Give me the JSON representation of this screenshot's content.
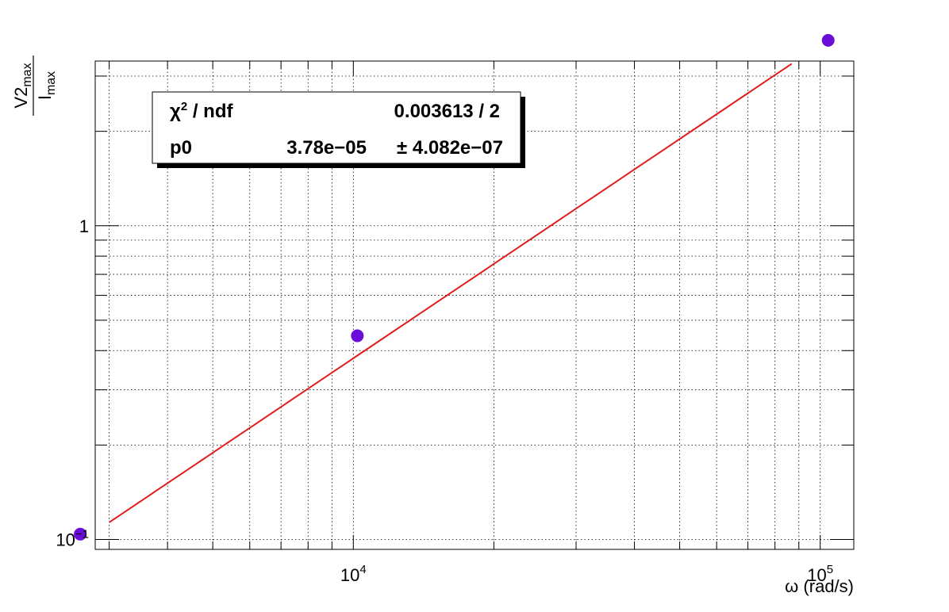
{
  "chart_data": {
    "type": "scatter",
    "title": "",
    "xlabel": "ω (rad/s)",
    "ylabel_num": "V2",
    "ylabel_num_sub": "max",
    "ylabel_den": "I",
    "ylabel_den_sub": "max",
    "x_scale": "log",
    "y_scale": "log",
    "xlim": [
      2800,
      118000
    ],
    "ylim": [
      0.093,
      3.35
    ],
    "grid": true,
    "x_major_ticks": [
      {
        "value": 10000,
        "base": "10",
        "exp": "4"
      },
      {
        "value": 100000,
        "base": "10",
        "exp": "5"
      }
    ],
    "y_major_ticks": [
      {
        "value": 0.1,
        "base": "10",
        "exp": "−1"
      },
      {
        "value": 1,
        "base": "1",
        "exp": ""
      }
    ],
    "series": [
      {
        "kind": "points",
        "color": "#6a0dd9",
        "points": [
          {
            "x": 2600,
            "y": 0.104
          },
          {
            "x": 10200,
            "y": 0.446
          },
          {
            "x": 104000,
            "y": 3.9
          }
        ]
      },
      {
        "kind": "fit",
        "color": "#e31b1b",
        "model": "p0*x",
        "p0": 3.78e-05
      }
    ],
    "stats_box": {
      "placement": "top-left",
      "rows": [
        {
          "label_main": "χ",
          "label_sup": "2",
          "label_rest": " / ndf",
          "value": "0.003613 / 2"
        },
        {
          "label_main": "p0",
          "label_sup": "",
          "label_rest": "",
          "value": "3.78e−05",
          "error": "± 4.082e−07"
        }
      ]
    }
  }
}
